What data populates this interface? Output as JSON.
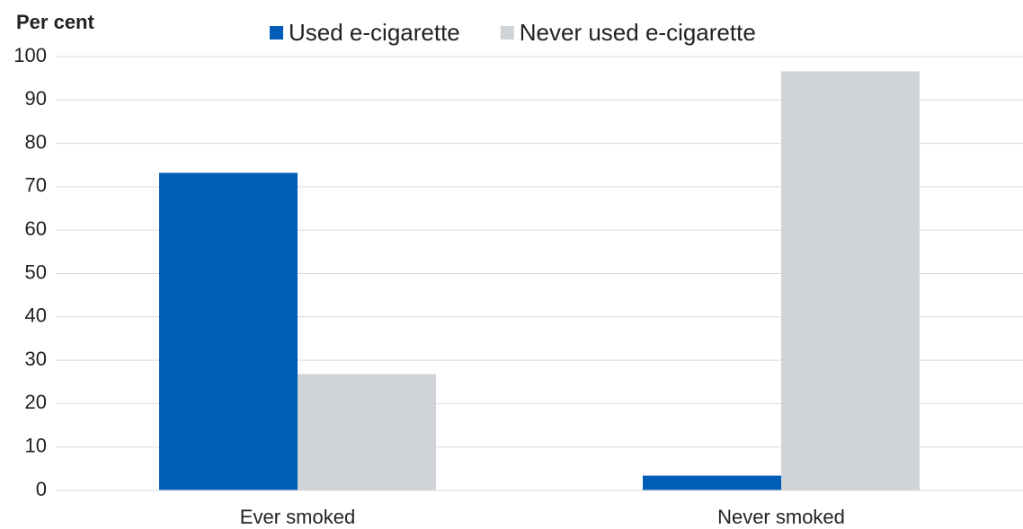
{
  "chart_data": {
    "type": "bar",
    "y_label": "Per cent",
    "categories": [
      "Ever smoked",
      "Never smoked"
    ],
    "series": [
      {
        "name": "Used e-cigarette",
        "color": "#005eb8",
        "values": [
          73.2,
          3.4
        ]
      },
      {
        "name": "Never used e-cigarette",
        "color": "#d0d3d8",
        "values": [
          26.8,
          96.6
        ]
      }
    ],
    "ylim": [
      0,
      100
    ],
    "yticks": [
      0,
      10,
      20,
      30,
      40,
      50,
      60,
      70,
      80,
      90,
      100
    ],
    "grid": true,
    "legend": "top"
  }
}
